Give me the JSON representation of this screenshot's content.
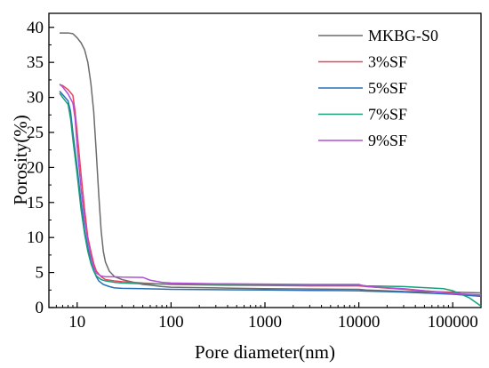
{
  "chart_data": {
    "type": "line",
    "title": "",
    "xlabel": "Pore diameter(nm)",
    "ylabel": "Porosity(%)",
    "xscale": "log",
    "xlim": [
      5,
      200000
    ],
    "ylim": [
      0,
      42
    ],
    "x_ticks": [
      10,
      100,
      1000,
      10000,
      100000
    ],
    "x_tick_labels": [
      "10",
      "100",
      "1000",
      "10000",
      "100000"
    ],
    "y_ticks": [
      0,
      5,
      10,
      15,
      20,
      25,
      30,
      35,
      40
    ],
    "y_tick_labels": [
      "0",
      "5",
      "10",
      "15",
      "20",
      "25",
      "30",
      "35",
      "40"
    ],
    "grid": false,
    "legend_position": "top-right",
    "series": [
      {
        "name": "MKBG-S0",
        "color": "#6b6b6b",
        "points": [
          [
            6.5,
            39.2
          ],
          [
            8,
            39.2
          ],
          [
            9,
            39.1
          ],
          [
            10,
            38.5
          ],
          [
            11,
            37.8
          ],
          [
            12,
            36.8
          ],
          [
            13,
            35
          ],
          [
            14,
            32
          ],
          [
            15,
            28
          ],
          [
            16,
            22
          ],
          [
            17,
            16
          ],
          [
            18,
            11
          ],
          [
            19,
            8
          ],
          [
            20,
            6.5
          ],
          [
            22,
            5.2
          ],
          [
            25,
            4.4
          ],
          [
            30,
            4.0
          ],
          [
            40,
            3.6
          ],
          [
            50,
            3.3
          ],
          [
            60,
            3.2
          ],
          [
            80,
            3.0
          ],
          [
            100,
            2.9
          ],
          [
            300,
            2.8
          ],
          [
            1000,
            2.7
          ],
          [
            3000,
            2.65
          ],
          [
            10000,
            2.6
          ],
          [
            12000,
            2.5
          ],
          [
            30000,
            2.3
          ],
          [
            100000,
            2.2
          ],
          [
            200000,
            2.1
          ]
        ]
      },
      {
        "name": "3%SF",
        "color": "#e8455a",
        "points": [
          [
            6.5,
            31.8
          ],
          [
            7,
            31.7
          ],
          [
            8,
            31.1
          ],
          [
            9,
            30.3
          ],
          [
            9.5,
            28
          ],
          [
            10,
            25
          ],
          [
            11,
            19
          ],
          [
            12,
            14
          ],
          [
            13,
            10
          ],
          [
            14,
            8
          ],
          [
            15,
            6.3
          ],
          [
            16,
            5.2
          ],
          [
            18,
            4.4
          ],
          [
            20,
            4.0
          ],
          [
            25,
            3.8
          ],
          [
            30,
            3.7
          ],
          [
            40,
            3.6
          ],
          [
            50,
            3.5
          ],
          [
            70,
            3.4
          ],
          [
            100,
            3.3
          ],
          [
            300,
            3.2
          ],
          [
            1000,
            3.15
          ],
          [
            3000,
            3.1
          ],
          [
            10000,
            3.1
          ],
          [
            12000,
            3.0
          ],
          [
            30000,
            2.6
          ],
          [
            100000,
            2.1
          ],
          [
            200000,
            1.6
          ]
        ]
      },
      {
        "name": "5%SF",
        "color": "#2a6fb5",
        "points": [
          [
            6.5,
            30.9
          ],
          [
            7,
            30.4
          ],
          [
            8,
            29.5
          ],
          [
            8.5,
            28
          ],
          [
            9,
            25
          ],
          [
            10,
            20
          ],
          [
            11,
            15
          ],
          [
            12,
            11
          ],
          [
            13,
            8.5
          ],
          [
            14,
            6.5
          ],
          [
            15,
            5.3
          ],
          [
            16,
            4.4
          ],
          [
            17,
            3.8
          ],
          [
            19,
            3.3
          ],
          [
            22,
            3.0
          ],
          [
            25,
            2.8
          ],
          [
            30,
            2.75
          ],
          [
            50,
            2.7
          ],
          [
            100,
            2.6
          ],
          [
            300,
            2.55
          ],
          [
            1000,
            2.5
          ],
          [
            3000,
            2.45
          ],
          [
            10000,
            2.4
          ],
          [
            12000,
            2.35
          ],
          [
            30000,
            2.2
          ],
          [
            100000,
            1.9
          ],
          [
            200000,
            1.6
          ]
        ]
      },
      {
        "name": "7%SF",
        "color": "#1a9e7a",
        "points": [
          [
            6.5,
            30.6
          ],
          [
            7,
            30.0
          ],
          [
            8,
            29.0
          ],
          [
            8.5,
            27
          ],
          [
            9,
            24
          ],
          [
            10,
            19
          ],
          [
            11,
            14
          ],
          [
            12,
            10.5
          ],
          [
            13,
            8
          ],
          [
            14,
            6.3
          ],
          [
            15,
            5.2
          ],
          [
            16,
            4.5
          ],
          [
            18,
            4.0
          ],
          [
            20,
            3.8
          ],
          [
            25,
            3.6
          ],
          [
            30,
            3.5
          ],
          [
            50,
            3.4
          ],
          [
            100,
            3.35
          ],
          [
            300,
            3.3
          ],
          [
            1000,
            3.3
          ],
          [
            3000,
            3.25
          ],
          [
            10000,
            3.2
          ],
          [
            12000,
            3.1
          ],
          [
            30000,
            3.0
          ],
          [
            80000,
            2.7
          ],
          [
            100000,
            2.4
          ],
          [
            150000,
            1.4
          ],
          [
            200000,
            0.2
          ]
        ]
      },
      {
        "name": "9%SF",
        "color": "#b24fd6",
        "points": [
          [
            6.5,
            31.9
          ],
          [
            7,
            31.5
          ],
          [
            8,
            30.5
          ],
          [
            9,
            29.2
          ],
          [
            9.5,
            27
          ],
          [
            10,
            23
          ],
          [
            11,
            17
          ],
          [
            12,
            12.5
          ],
          [
            13,
            9.5
          ],
          [
            14,
            7.3
          ],
          [
            15,
            5.8
          ],
          [
            16,
            4.9
          ],
          [
            18,
            4.5
          ],
          [
            20,
            4.4
          ],
          [
            25,
            4.4
          ],
          [
            30,
            4.35
          ],
          [
            50,
            4.3
          ],
          [
            60,
            3.9
          ],
          [
            80,
            3.6
          ],
          [
            100,
            3.5
          ],
          [
            300,
            3.4
          ],
          [
            1000,
            3.35
          ],
          [
            3000,
            3.3
          ],
          [
            10000,
            3.3
          ],
          [
            12000,
            3.0
          ],
          [
            30000,
            2.7
          ],
          [
            100000,
            2.0
          ],
          [
            200000,
            1.8
          ]
        ]
      }
    ]
  }
}
